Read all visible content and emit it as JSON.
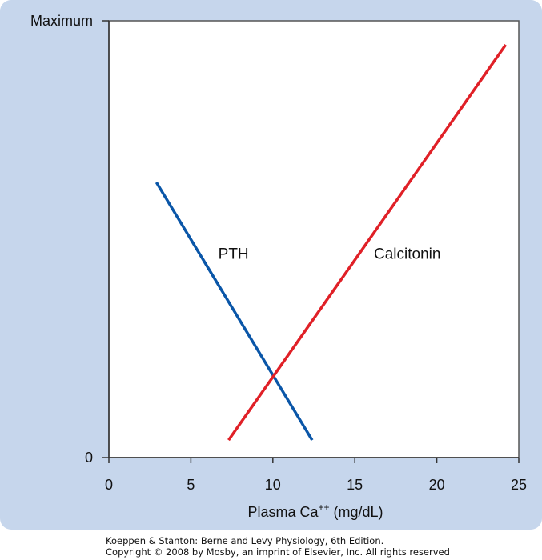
{
  "chart_data": {
    "type": "line",
    "title": "",
    "xlabel_base": "Plasma Ca",
    "xlabel_sup": "++",
    "xlabel_unit": " (mg/dL)",
    "x_ticks": [
      0,
      5,
      10,
      15,
      20,
      25
    ],
    "xlim": [
      0,
      25
    ],
    "y_tick_labels": [
      "0",
      "Maximum"
    ],
    "ylim": [
      0,
      1
    ],
    "grid": false,
    "series": [
      {
        "name": "PTH",
        "color": "#0a56a8",
        "x": [
          2.9,
          12.4
        ],
        "y": [
          0.63,
          0.04
        ]
      },
      {
        "name": "Calcitonin",
        "color": "#e02027",
        "x": [
          7.3,
          24.2
        ],
        "y": [
          0.04,
          0.945
        ]
      }
    ],
    "annotations": [
      {
        "text": "PTH",
        "x": 7.6,
        "y": 0.455
      },
      {
        "text": "Calcitonin",
        "x": 18.2,
        "y": 0.455
      }
    ]
  },
  "credit": {
    "line1": "Koeppen & Stanton: Berne and Levy Physiology, 6th Edition.",
    "line2": "Copyright © 2008 by Mosby, an imprint of Elsevier, Inc. All rights reserved"
  }
}
